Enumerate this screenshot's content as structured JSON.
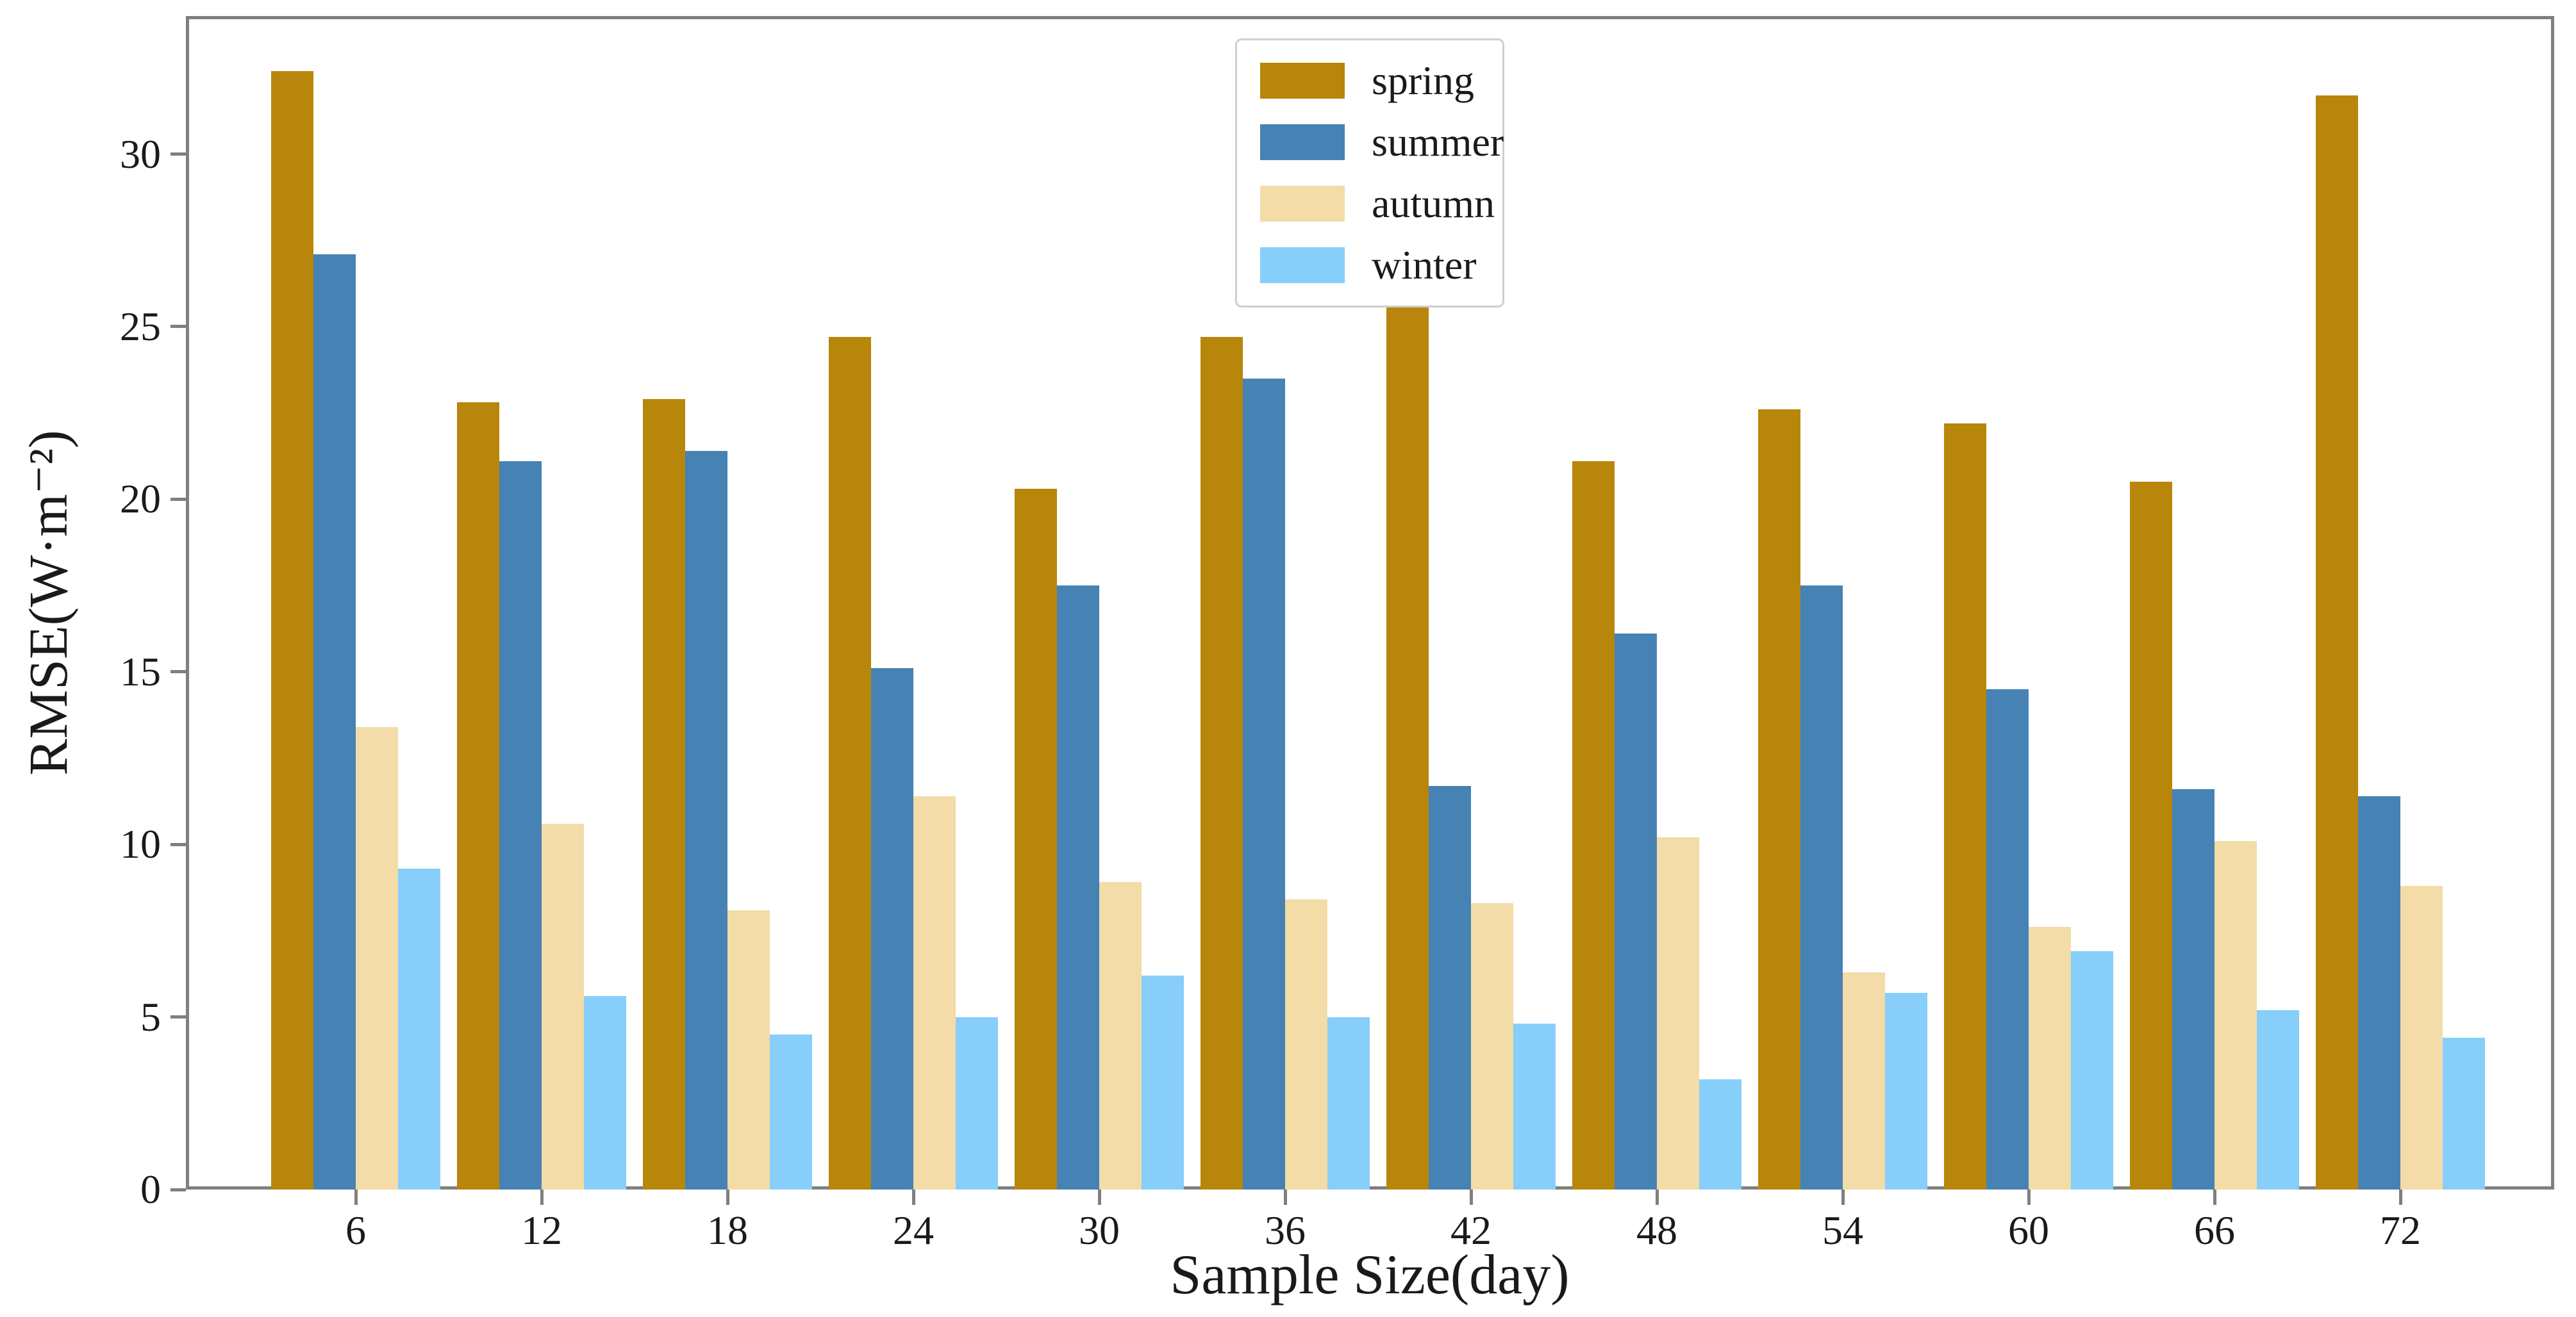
{
  "figure": {
    "xlabel": "Sample Size(day)",
    "ylabel": "RMSE(W·m⁻²)"
  },
  "chart_data": {
    "type": "bar",
    "title": "",
    "xlabel": "Sample Size(day)",
    "ylabel": "RMSE(W·m⁻²)",
    "categories": [
      "6",
      "12",
      "18",
      "24",
      "30",
      "36",
      "42",
      "48",
      "54",
      "60",
      "66",
      "72"
    ],
    "series": [
      {
        "name": "spring",
        "color": "#B8860B",
        "values": [
          32.4,
          22.8,
          22.9,
          24.7,
          20.3,
          24.7,
          26.1,
          21.1,
          22.6,
          22.2,
          20.5,
          31.7
        ]
      },
      {
        "name": "summer",
        "color": "#4682B4",
        "values": [
          27.1,
          21.1,
          21.4,
          15.1,
          17.5,
          23.5,
          11.7,
          16.1,
          17.5,
          14.5,
          11.6,
          11.4
        ]
      },
      {
        "name": "autumn",
        "color": "#F3DCA7",
        "values": [
          13.4,
          10.6,
          8.1,
          11.4,
          8.9,
          8.4,
          8.3,
          10.2,
          6.3,
          7.6,
          10.1,
          8.8
        ]
      },
      {
        "name": "winter",
        "color": "#87CEFA",
        "values": [
          9.3,
          5.6,
          4.5,
          5.0,
          6.2,
          5.0,
          4.8,
          3.2,
          5.7,
          6.9,
          5.2,
          4.4
        ]
      }
    ],
    "ylim": [
      0,
      34
    ],
    "yticks": [
      "0",
      "5",
      "10",
      "15",
      "20",
      "25",
      "30"
    ],
    "grid": false,
    "legend_position": "upper center-left"
  }
}
